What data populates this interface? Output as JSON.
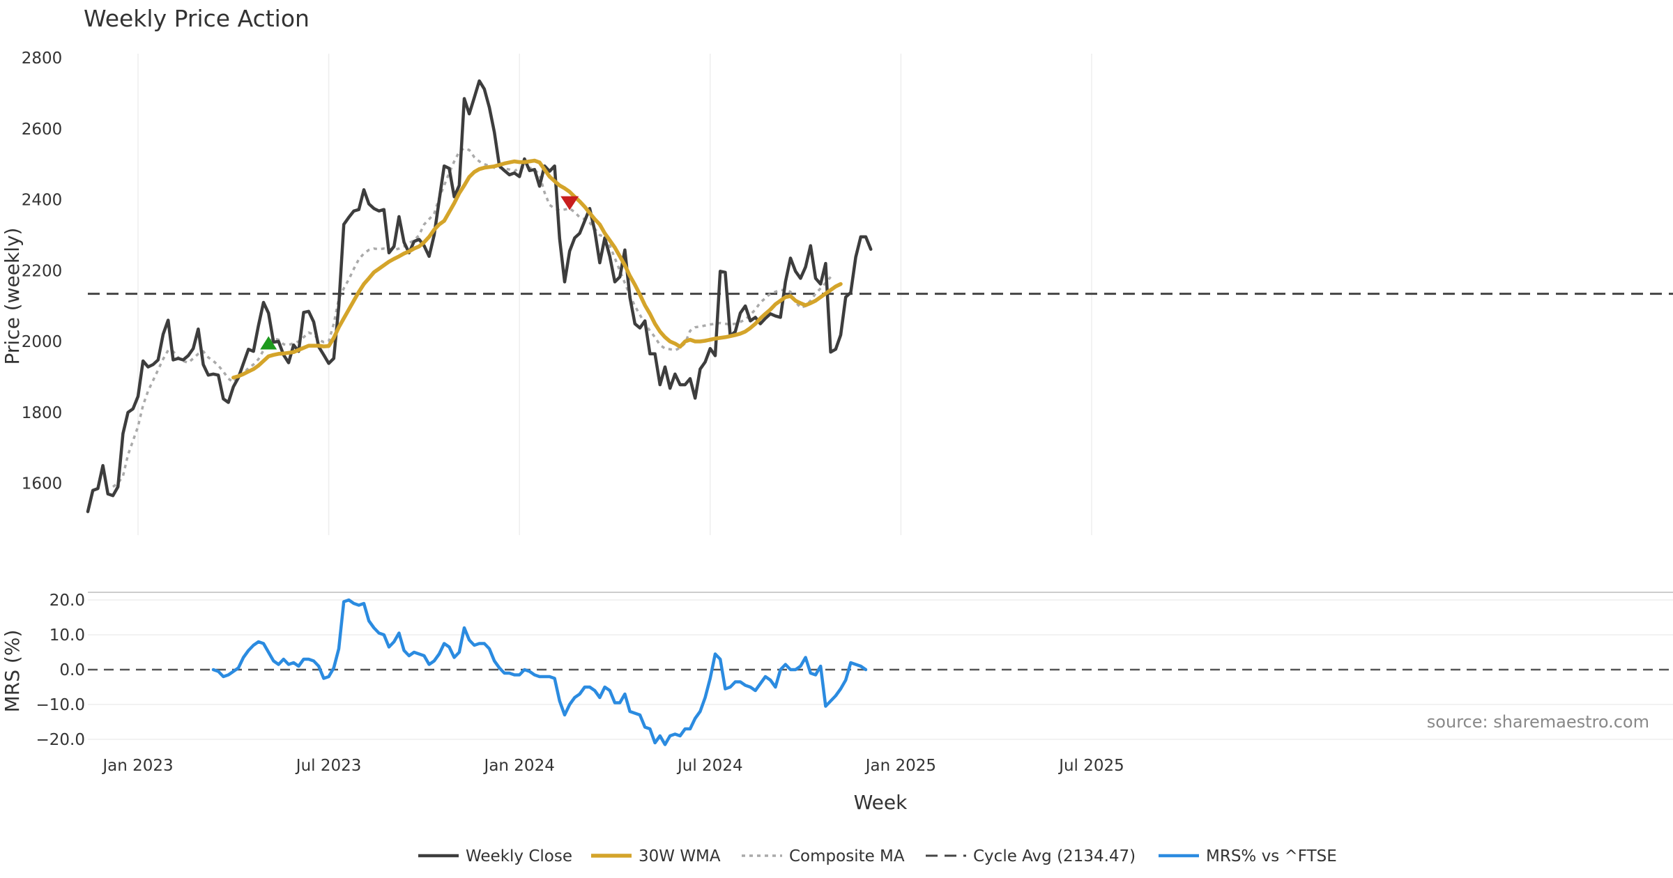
{
  "chart_data": {
    "type": "line",
    "title": "Weekly Price Action",
    "xlabel": "Week",
    "source": "source: sharemaestro.com",
    "colors": {
      "close": "#3d3d3d",
      "wma": "#d4a42a",
      "composite": "#aaaaaa",
      "cycle": "#444444",
      "mrs": "#2b8be0",
      "buy": "#1e9a1e",
      "sell": "#c81e1e"
    },
    "x_ticks": [
      "Jan 2023",
      "Jul 2023",
      "Jan 2024",
      "Jul 2024",
      "Jan 2025",
      "Jul 2025"
    ],
    "price_panel": {
      "ylabel": "Price (weekly)",
      "ylim": [
        1500,
        2800
      ],
      "y_ticks": [
        1600,
        1800,
        2000,
        2200,
        2400,
        2600,
        2800
      ],
      "cycle_avg": 2134.47,
      "series": [
        {
          "name": "Weekly Close",
          "style": "solid",
          "x0": 0,
          "values": [
            1520,
            1580,
            1585,
            1650,
            1570,
            1565,
            1590,
            1740,
            1800,
            1810,
            1845,
            1945,
            1928,
            1935,
            1948,
            2020,
            2060,
            1948,
            1952,
            1948,
            1960,
            1980,
            2035,
            1935,
            1905,
            1908,
            1905,
            1838,
            1828,
            1872,
            1898,
            1938,
            1978,
            1972,
            2045,
            2110,
            2080,
            1998,
            2000,
            1962,
            1940,
            1990,
            1972,
            2082,
            2085,
            2055,
            1985,
            1962,
            1938,
            1952,
            2100,
            2330,
            2350,
            2368,
            2372,
            2428,
            2388,
            2375,
            2368,
            2372,
            2250,
            2268,
            2352,
            2280,
            2250,
            2282,
            2288,
            2270,
            2240,
            2300,
            2398,
            2495,
            2488,
            2408,
            2440,
            2685,
            2642,
            2688,
            2735,
            2712,
            2660,
            2590,
            2495,
            2482,
            2470,
            2475,
            2465,
            2515,
            2482,
            2485,
            2438,
            2495,
            2480,
            2495,
            2290,
            2168,
            2255,
            2292,
            2305,
            2340,
            2375,
            2312,
            2222,
            2292,
            2240,
            2168,
            2182,
            2258,
            2125,
            2050,
            2038,
            2058,
            1965,
            1965,
            1878,
            1928,
            1868,
            1908,
            1878,
            1878,
            1895,
            1840,
            1922,
            1942,
            1980,
            1960,
            2198,
            2195,
            2015,
            2028,
            2080,
            2100,
            2058,
            2068,
            2050,
            2065,
            2078,
            2072,
            2068,
            2168,
            2235,
            2198,
            2178,
            2210,
            2270,
            2178,
            2162,
            2220,
            1970,
            1978,
            2018,
            2125,
            2138,
            2238,
            2295,
            2295,
            2260
          ]
        },
        {
          "name": "30W WMA",
          "style": "bold",
          "x0": 29,
          "values": [
            1898,
            1902,
            1908,
            1915,
            1922,
            1932,
            1945,
            1958,
            1962,
            1965,
            1966,
            1968,
            1970,
            1976,
            1982,
            1988,
            1988,
            1988,
            1986,
            1987,
            2010,
            2040,
            2065,
            2090,
            2115,
            2140,
            2162,
            2178,
            2195,
            2205,
            2215,
            2225,
            2233,
            2240,
            2248,
            2254,
            2262,
            2268,
            2280,
            2295,
            2315,
            2330,
            2340,
            2365,
            2390,
            2418,
            2440,
            2464,
            2478,
            2486,
            2490,
            2492,
            2494,
            2498,
            2502,
            2505,
            2508,
            2506,
            2506,
            2508,
            2510,
            2505,
            2485,
            2465,
            2452,
            2440,
            2432,
            2422,
            2408,
            2395,
            2380,
            2362,
            2345,
            2330,
            2305,
            2285,
            2265,
            2240,
            2215,
            2185,
            2160,
            2132,
            2102,
            2078,
            2050,
            2028,
            2012,
            2000,
            1994,
            1985,
            2000,
            2005,
            2000,
            2000,
            2002,
            2005,
            2008,
            2010,
            2012,
            2015,
            2018,
            2022,
            2028,
            2038,
            2050,
            2065,
            2078,
            2090,
            2105,
            2115,
            2125,
            2128,
            2115,
            2108,
            2102,
            2108,
            2115,
            2125,
            2135,
            2145,
            2155,
            2162
          ]
        },
        {
          "name": "Composite MA",
          "style": "dotted",
          "x0": 5,
          "values": [
            1590,
            1600,
            1620,
            1680,
            1720,
            1760,
            1820,
            1860,
            1890,
            1920,
            1950,
            1975,
            1972,
            1955,
            1945,
            1940,
            1952,
            1965,
            1972,
            1955,
            1945,
            1932,
            1915,
            1895,
            1885,
            1900,
            1910,
            1925,
            1935,
            1950,
            1975,
            2000,
            2008,
            2005,
            1992,
            1990,
            1995,
            2000,
            2012,
            2025,
            2020,
            2005,
            1998,
            2000,
            2050,
            2120,
            2150,
            2175,
            2205,
            2232,
            2248,
            2258,
            2262,
            2260,
            2262,
            2260,
            2258,
            2262,
            2268,
            2278,
            2285,
            2300,
            2330,
            2345,
            2360,
            2405,
            2440,
            2475,
            2508,
            2535,
            2545,
            2540,
            2520,
            2508,
            2500,
            2495,
            2490,
            2490,
            2488,
            2485,
            2480,
            2490,
            2492,
            2490,
            2485,
            2470,
            2420,
            2385,
            2375,
            2370,
            2372,
            2375,
            2365,
            2350,
            2345,
            2335,
            2318,
            2300,
            2295,
            2270,
            2235,
            2200,
            2165,
            2130,
            2100,
            2075,
            2050,
            2030,
            2012,
            1990,
            1980,
            1978,
            1975,
            1982,
            1995,
            2030,
            2040,
            2042,
            2045,
            2048,
            2050,
            2052,
            2050,
            2048,
            2050,
            2055,
            2062,
            2075,
            2090,
            2110,
            2122,
            2135,
            2140,
            2145,
            2145,
            2140,
            2112,
            2095,
            2100,
            2115,
            2135,
            2150,
            2165,
            2182
          ]
        }
      ],
      "signals": [
        {
          "type": "buy",
          "x": 36,
          "y": 1995
        },
        {
          "type": "sell",
          "x": 96,
          "y": 2392
        }
      ]
    },
    "mrs_panel": {
      "ylabel": "MRS (%)",
      "ylim": [
        -23,
        23
      ],
      "y_ticks": [
        -20,
        -10,
        0,
        10,
        20
      ],
      "y_tick_labels": [
        "−20.0",
        "−10.0",
        "0.0",
        "10.0",
        "20.0"
      ],
      "series": {
        "name": "MRS% vs ^FTSE",
        "x0": 25,
        "values": [
          0,
          -0.5,
          -2,
          -1.5,
          -0.5,
          0.5,
          3.5,
          5.5,
          7,
          8,
          7.5,
          5,
          2.5,
          1.5,
          3,
          1.5,
          2,
          1,
          3,
          3,
          2.5,
          1,
          -2.5,
          -2,
          0.5,
          6,
          19.5,
          20,
          19,
          18.5,
          19,
          14,
          12,
          10.5,
          10,
          6.5,
          8,
          10.5,
          5.5,
          4,
          5,
          4.5,
          4,
          1.5,
          2.5,
          4.5,
          7.5,
          6.5,
          3.5,
          5,
          12,
          8.5,
          7,
          7.5,
          7.5,
          6,
          2.5,
          0.5,
          -1,
          -1,
          -1.5,
          -1.5,
          0,
          -0.5,
          -1.5,
          -2,
          -2,
          -2,
          -2.5,
          -9,
          -13,
          -10,
          -8,
          -7,
          -5,
          -5,
          -6,
          -8,
          -5,
          -6,
          -9.5,
          -9.5,
          -7,
          -12,
          -12.5,
          -13,
          -16.5,
          -17,
          -21,
          -19,
          -21.5,
          -19,
          -18.5,
          -19,
          -17,
          -17,
          -14,
          -12,
          -8,
          -2.5,
          4.5,
          3,
          -5.5,
          -5,
          -3.5,
          -3.5,
          -4.5,
          -5,
          -6,
          -4,
          -2,
          -3,
          -5,
          0,
          1.5,
          0,
          0,
          1,
          3.5,
          -1,
          -1.5,
          1,
          -10.5,
          -9,
          -7.5,
          -5.5,
          -3,
          2,
          1.5,
          1,
          0
        ]
      }
    },
    "legend": [
      {
        "key": "close",
        "label": "Weekly Close"
      },
      {
        "key": "wma",
        "label": "30W WMA"
      },
      {
        "key": "composite",
        "label": "Composite MA"
      },
      {
        "key": "cycle",
        "label": "Cycle Avg (2134.47)"
      },
      {
        "key": "mrs",
        "label": "MRS% vs ^FTSE"
      }
    ]
  }
}
